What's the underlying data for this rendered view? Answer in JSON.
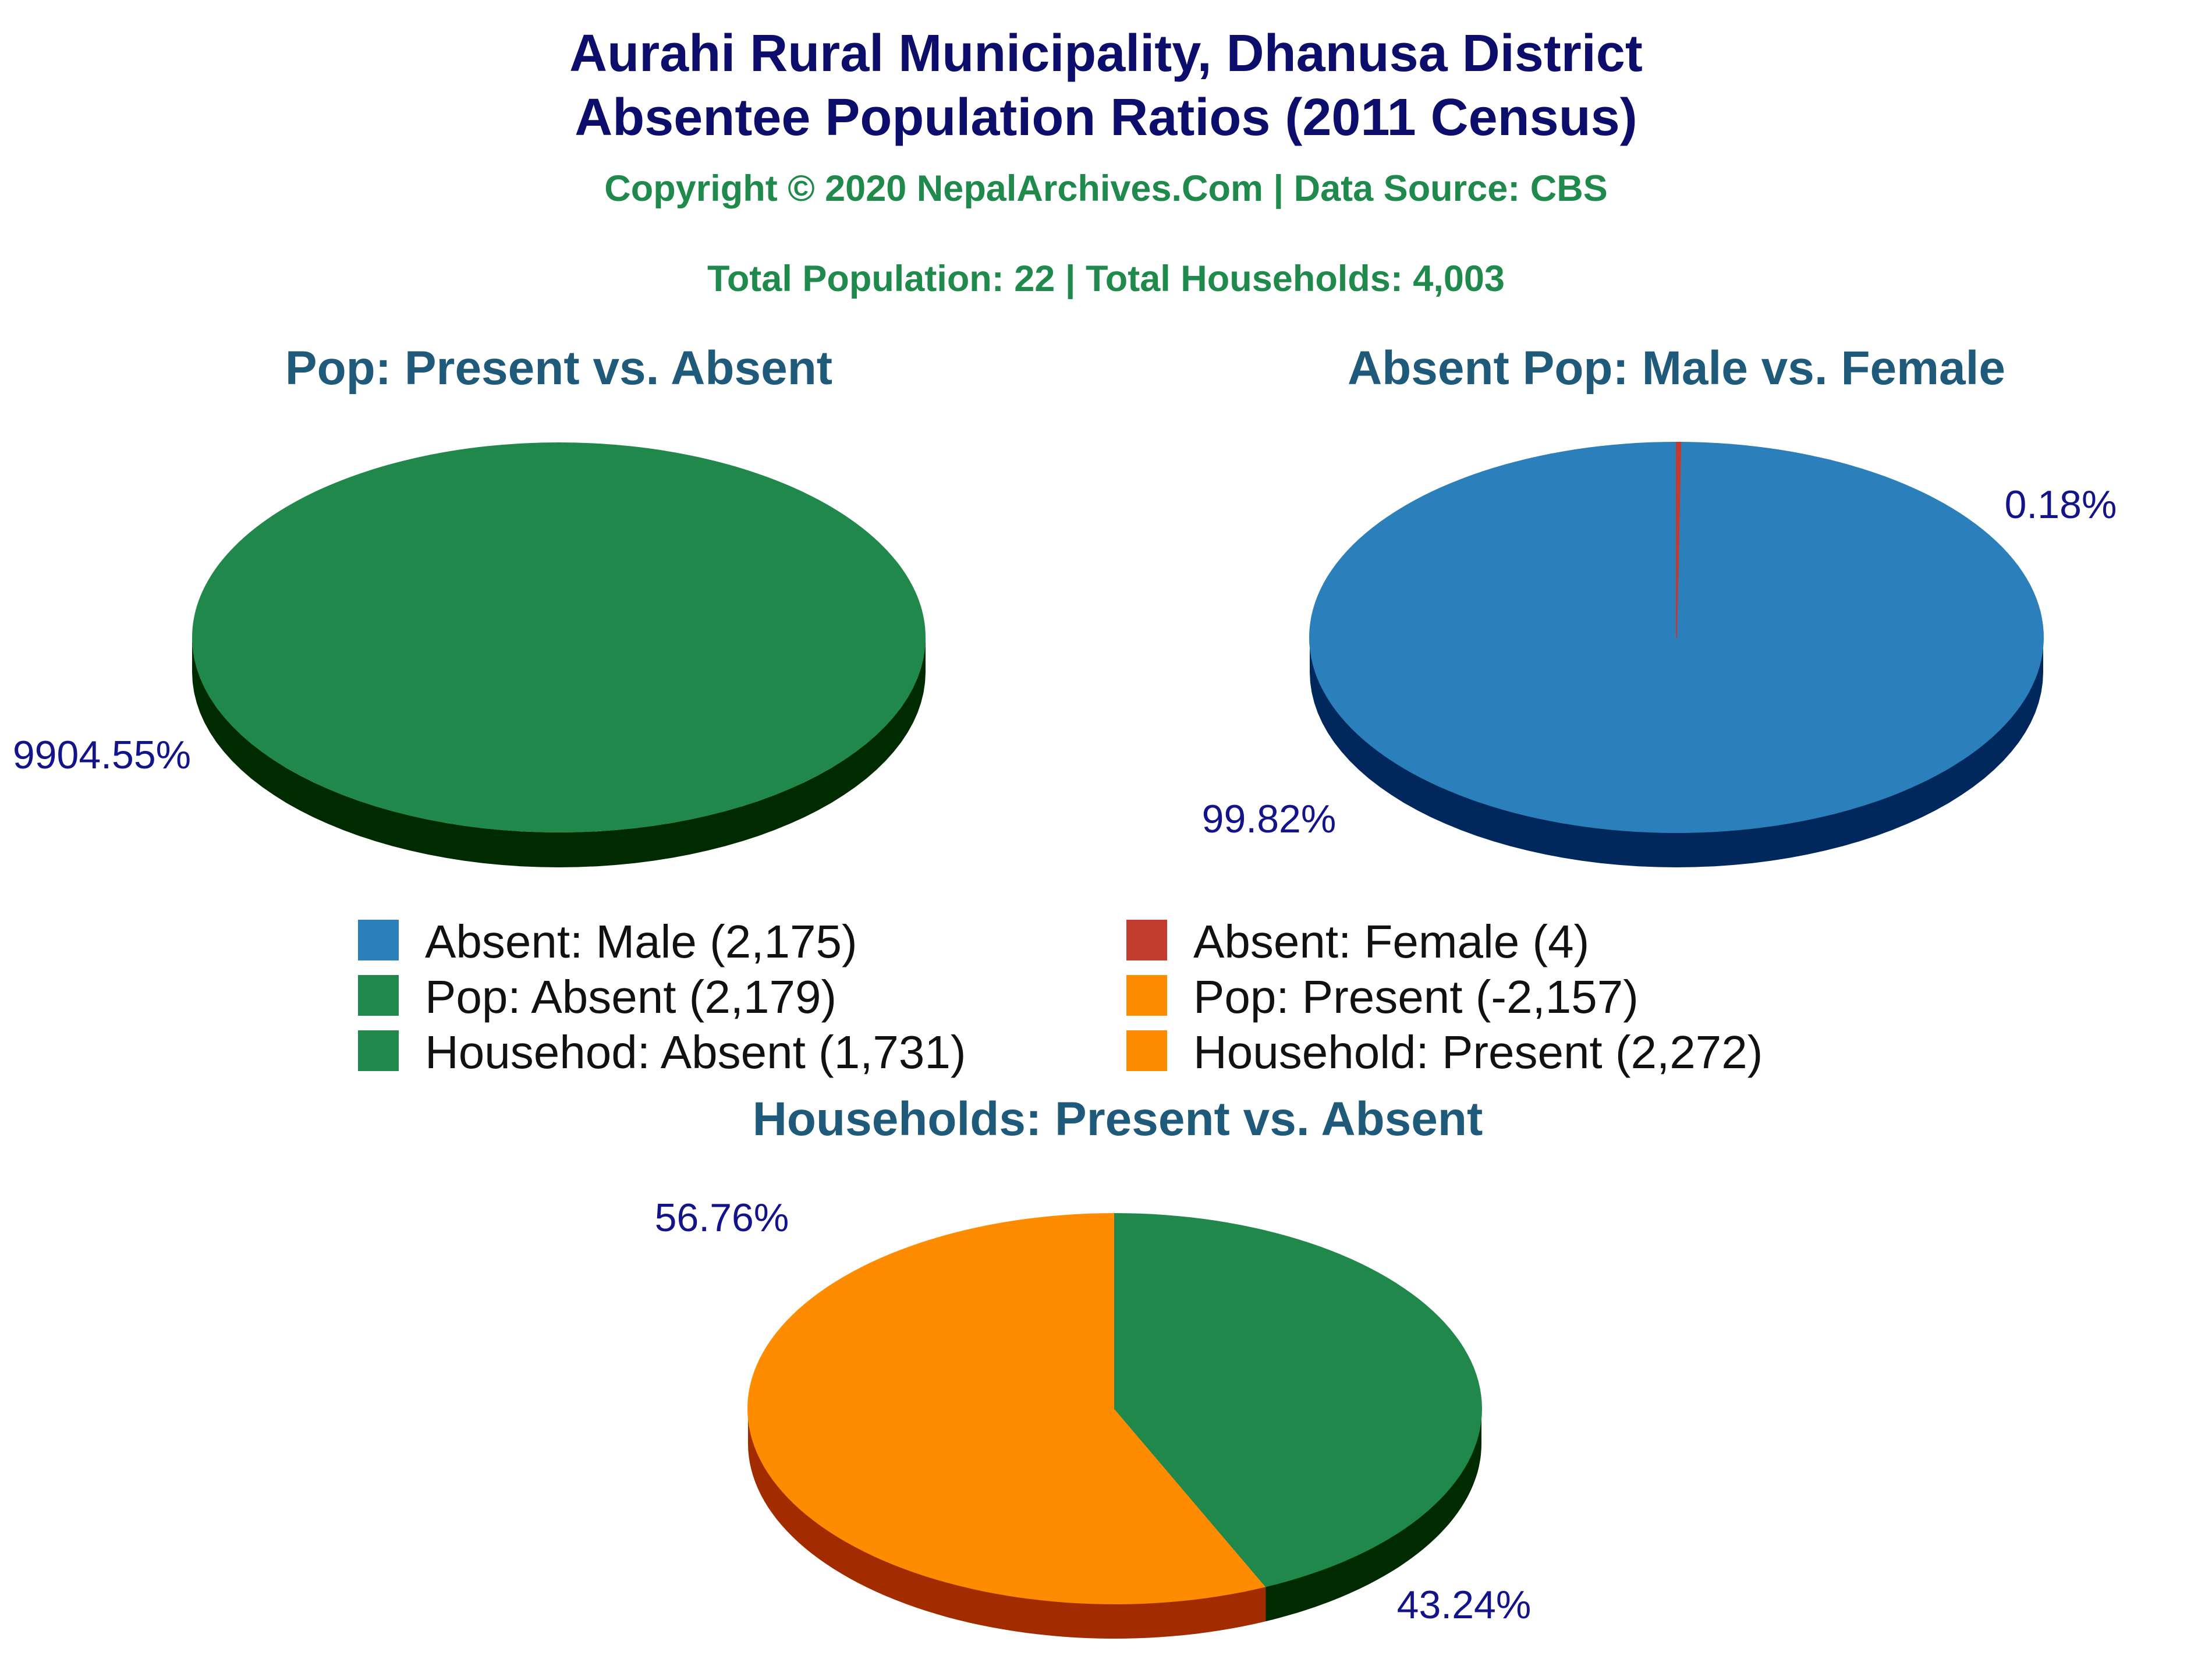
{
  "header": {
    "title_line1": "Aurahi Rural Municipality, Dhanusa District",
    "title_line2": "Absentee Population Ratios (2011 Census)",
    "copyright": "Copyright © 2020 NepalArchives.Com | Data Source: CBS",
    "totals": "Total Population: 22 | Total Households: 4,003"
  },
  "legend": [
    {
      "label": "Absent: Male (2,175)",
      "color": "#2b7fba"
    },
    {
      "label": "Absent: Female (4)",
      "color": "#c23b2e"
    },
    {
      "label": "Pop: Absent (2,179)",
      "color": "#20884a"
    },
    {
      "label": "Pop: Present (-2,157)",
      "color": "#ff8c00"
    },
    {
      "label": "Househod: Absent (1,731)",
      "color": "#20884a"
    },
    {
      "label": "Household: Present (2,272)",
      "color": "#ff8c00"
    }
  ],
  "chart_data": [
    {
      "type": "pie",
      "title": "Pop: Present vs. Absent",
      "slices": [
        {
          "label": "Pop: Absent",
          "value": 2179,
          "color": "#20884a",
          "side_color": "#002a00",
          "pct_label": "9904.55%"
        }
      ]
    },
    {
      "type": "pie",
      "title": "Absent Pop: Male vs. Female",
      "slices": [
        {
          "label": "Absent: Male",
          "value": 2175,
          "color": "#2b7fba",
          "side_color": "#00285c",
          "pct_label": "99.82%"
        },
        {
          "label": "Absent: Female",
          "value": 4,
          "color": "#c23b2e",
          "side_color": "#6b0f08",
          "pct_label": "0.18%"
        }
      ]
    },
    {
      "type": "pie",
      "title": "Households: Present vs. Absent",
      "slices": [
        {
          "label": "Household: Present",
          "value": 2272,
          "color": "#ff8c00",
          "side_color": "#a22c00",
          "pct_label": "56.76%"
        },
        {
          "label": "Househod: Absent",
          "value": 1731,
          "color": "#20884a",
          "side_color": "#002a00",
          "pct_label": "43.24%"
        }
      ]
    }
  ]
}
